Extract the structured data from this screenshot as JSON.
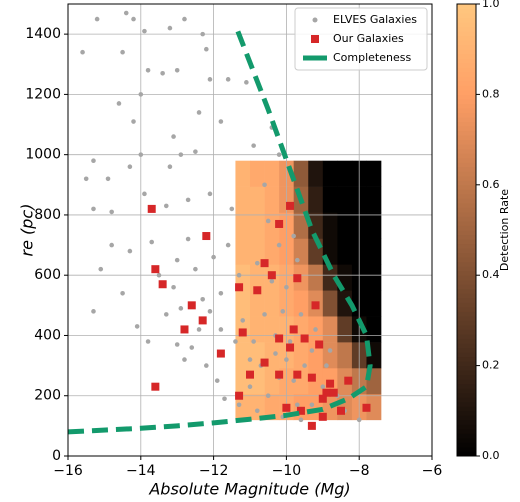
{
  "chart_data": {
    "type": "scatter",
    "xlabel": "Absolute Magnitude  (Mg)",
    "ylabel": "re  (pc)",
    "xlim": [
      -16,
      -6
    ],
    "ylim": [
      0,
      1500
    ],
    "xticks": [
      {
        "value": -16,
        "label": "−16"
      },
      {
        "value": -14,
        "label": "−14"
      },
      {
        "value": -12,
        "label": "−12"
      },
      {
        "value": -10,
        "label": "−10"
      },
      {
        "value": -8,
        "label": "−8"
      },
      {
        "value": -6,
        "label": "−6"
      }
    ],
    "yticks": [
      0,
      200,
      400,
      600,
      800,
      1000,
      1200,
      1400
    ],
    "grid": true,
    "legend": "upper right",
    "heatmap": {
      "colormap": "copper",
      "label": "Detection Rate",
      "x_edges": [
        -11.4,
        -11.0,
        -10.6,
        -10.2,
        -9.8,
        -9.4,
        -9.0,
        -8.6,
        -8.2,
        -7.8,
        -7.4
      ],
      "y_edges": [
        120,
        206,
        292,
        378,
        464,
        550,
        636,
        722,
        808,
        894,
        980
      ],
      "values": [
        [
          0.9,
          0.9,
          0.85,
          0.85,
          0.8,
          0.8,
          0.75,
          0.7,
          0.75,
          0.7
        ],
        [
          0.95,
          0.95,
          0.9,
          0.85,
          0.85,
          0.8,
          0.8,
          0.7,
          0.6,
          0.5
        ],
        [
          0.95,
          0.95,
          0.9,
          0.9,
          0.85,
          0.8,
          0.7,
          0.6,
          0.3,
          0.05
        ],
        [
          0.95,
          0.9,
          0.9,
          0.9,
          0.85,
          0.8,
          0.7,
          0.3,
          0.05,
          0.0
        ],
        [
          0.95,
          0.9,
          0.9,
          0.85,
          0.8,
          0.7,
          0.4,
          0.1,
          0.0,
          0.0
        ],
        [
          0.95,
          0.9,
          0.9,
          0.85,
          0.75,
          0.6,
          0.2,
          0.05,
          0.0,
          0.0
        ],
        [
          0.9,
          0.9,
          0.85,
          0.8,
          0.65,
          0.3,
          0.05,
          0.0,
          0.0,
          0.0
        ],
        [
          0.9,
          0.9,
          0.85,
          0.8,
          0.55,
          0.2,
          0.05,
          0.0,
          0.0,
          0.0
        ],
        [
          0.9,
          0.9,
          0.85,
          0.75,
          0.5,
          0.15,
          0.0,
          0.0,
          0.0,
          0.0
        ],
        [
          0.9,
          0.85,
          0.85,
          0.75,
          0.45,
          0.1,
          0.0,
          0.0,
          0.0,
          0.0
        ]
      ],
      "clim": [
        0,
        1
      ],
      "ticks": [
        {
          "value": 0,
          "label": "0.0"
        },
        {
          "value": 0.2,
          "label": "0.2"
        },
        {
          "value": 0.4,
          "label": "0.4"
        },
        {
          "value": 0.6,
          "label": "0.6"
        },
        {
          "value": 0.8,
          "label": "0.8"
        },
        {
          "value": 1,
          "label": "1.0"
        }
      ]
    },
    "series": [
      {
        "name": "ELVES Galaxies",
        "type": "scatter",
        "marker": "circle",
        "color": "#a6a6a6",
        "x": [
          -15.6,
          -15.5,
          -15.2,
          -14.4,
          -14.2,
          -14.5,
          -13.9,
          -13.2,
          -12.8,
          -12.3,
          -12.2,
          -15.3,
          -15.1,
          -15.3,
          -14.9,
          -14.8,
          -14.6,
          -14.2,
          -14.0,
          -13.8,
          -13.4,
          -13.0,
          -12.1,
          -11.6,
          -11.1,
          -11.8,
          -12.4,
          -13.1,
          -14.0,
          -14.3,
          -13.2,
          -12.9,
          -12.5,
          -12.1,
          -12.7,
          -13.3,
          -13.9,
          -14.3,
          -14.5,
          -14.1,
          -13.7,
          -13.5,
          -13.0,
          -12.5,
          -12.9,
          -12.4,
          -13.3,
          -13.8,
          -13.0,
          -12.6,
          -12.2,
          -11.9,
          -11.7,
          -12.8,
          -12.3,
          -11.8,
          -11.6,
          -11.5,
          -12.0,
          -11.3,
          -11.2,
          -11.0,
          -10.6,
          -10.4,
          -10.2,
          -10.9,
          -10.5,
          -10.2,
          -10.8,
          -10.4,
          -10.0,
          -10.1,
          -10.6,
          -10.9,
          -10.3,
          -9.9,
          -10.7,
          -10.2,
          -9.8,
          -10.5,
          -9.7,
          -9.3,
          -9.2,
          -9.5,
          -9.0,
          -9.3,
          -8.9,
          -8.6,
          -8.4,
          -8.0,
          -11.3,
          -11.0,
          -10.8,
          -10.1,
          -9.6,
          -8.8,
          -9.6,
          -10.0,
          -10.3,
          -11.4,
          -11.8,
          -12.1,
          -12.7,
          -13.1,
          -14.8,
          -15.3,
          -9.7,
          -9.8
        ],
        "y": [
          1340,
          920,
          1450,
          1470,
          1450,
          1340,
          1410,
          1420,
          1450,
          1400,
          1350,
          820,
          620,
          480,
          920,
          810,
          1170,
          1110,
          1200,
          1280,
          1270,
          1280,
          1250,
          1250,
          1240,
          1110,
          1140,
          1060,
          1000,
          960,
          960,
          1000,
          1010,
          870,
          850,
          830,
          870,
          680,
          540,
          430,
          710,
          600,
          650,
          620,
          490,
          420,
          470,
          380,
          370,
          360,
          300,
          250,
          190,
          320,
          520,
          540,
          700,
          820,
          660,
          600,
          450,
          320,
          900,
          1090,
          1000,
          1030,
          780,
          700,
          640,
          580,
          560,
          480,
          470,
          380,
          400,
          380,
          300,
          260,
          250,
          200,
          170,
          350,
          420,
          300,
          230,
          170,
          300,
          200,
          150,
          120,
          170,
          230,
          150,
          130,
          120,
          350,
          470,
          320,
          340,
          380,
          420,
          480,
          720,
          560,
          700,
          980,
          650,
          730
        ]
      },
      {
        "name": "Our Galaxies",
        "type": "scatter",
        "marker": "square",
        "color": "#d62728",
        "x": [
          -13.7,
          -12.2,
          -13.6,
          -13.4,
          -12.6,
          -12.3,
          -12.8,
          -11.8,
          -13.6,
          -11.3,
          -10.8,
          -10.6,
          -10.4,
          -9.9,
          -10.2,
          -9.7,
          -9.2,
          -9.8,
          -9.5,
          -9.1,
          -9.9,
          -10.2,
          -10.6,
          -11.2,
          -11.0,
          -11.3,
          -10.2,
          -9.7,
          -9.3,
          -8.8,
          -8.9,
          -9.0,
          -8.7,
          -9.3,
          -9.0,
          -8.3,
          -7.8,
          -8.5,
          -10.0,
          -9.6
        ],
        "y": [
          820,
          730,
          620,
          570,
          500,
          450,
          420,
          340,
          230,
          560,
          550,
          640,
          600,
          830,
          770,
          590,
          500,
          420,
          390,
          370,
          360,
          390,
          310,
          410,
          270,
          200,
          270,
          270,
          260,
          240,
          210,
          190,
          210,
          100,
          130,
          250,
          160,
          150,
          160,
          150
        ]
      },
      {
        "name": "Completeness",
        "type": "line",
        "color": "#139a6c",
        "x": [
          -16,
          -14,
          -13,
          -12,
          -11,
          -10,
          -9,
          -8.3,
          -7.8,
          -7.7,
          -7.8,
          -8.2,
          -8.7,
          -9.3,
          -9.9,
          -10.5,
          -11.4
        ],
        "y": [
          80,
          92,
          100,
          110,
          122,
          135,
          155,
          190,
          230,
          300,
          400,
          500,
          600,
          750,
          950,
          1150,
          1430
        ]
      }
    ]
  }
}
